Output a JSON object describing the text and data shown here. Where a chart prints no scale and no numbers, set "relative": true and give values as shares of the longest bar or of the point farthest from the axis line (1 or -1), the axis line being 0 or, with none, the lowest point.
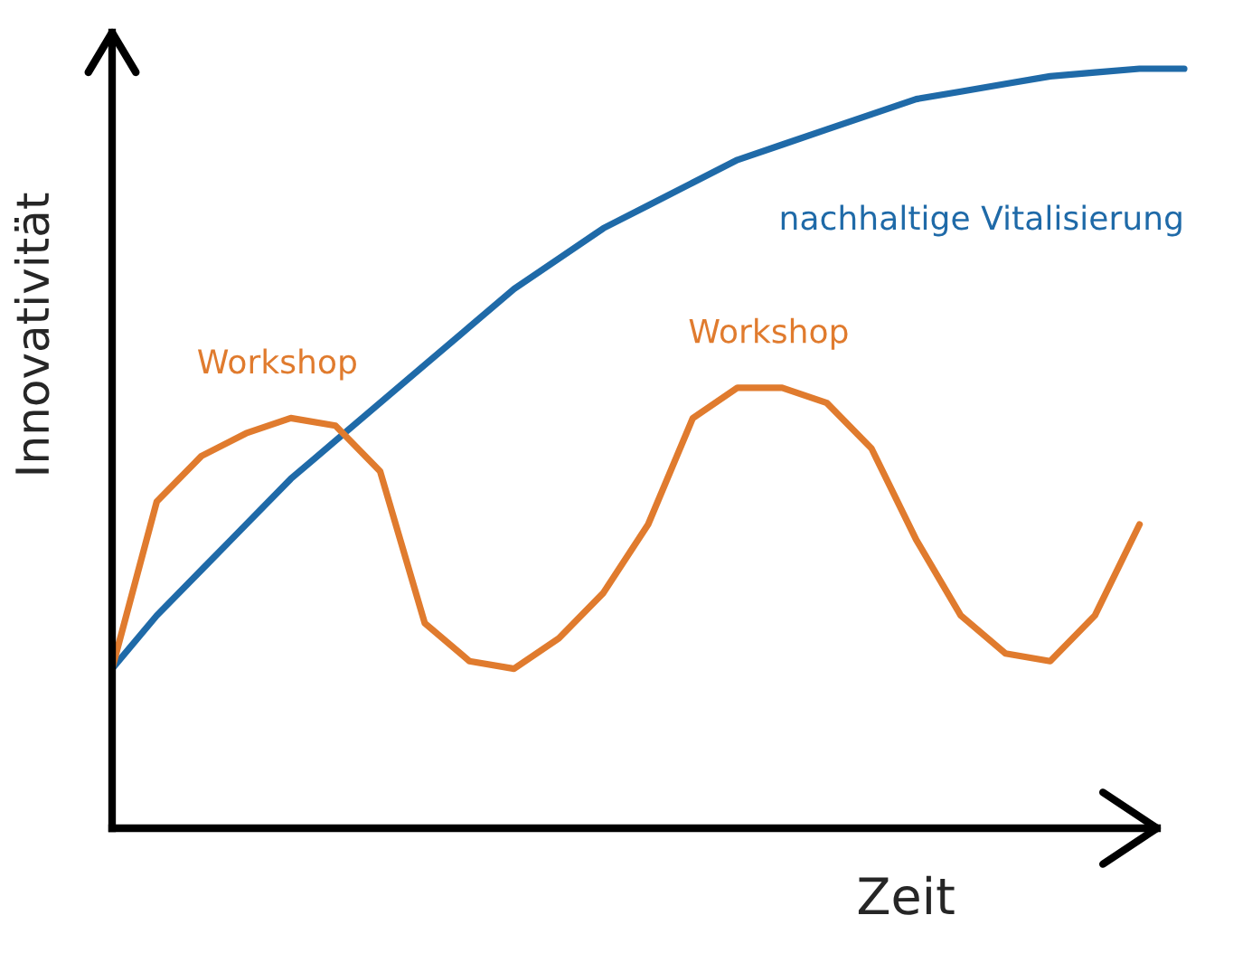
{
  "chart_data": {
    "type": "line",
    "relative": true,
    "xlabel": "Zeit",
    "ylabel": "Innovativität",
    "categories": [
      null,
      null,
      null,
      null,
      null,
      null,
      null,
      null,
      null,
      null,
      null,
      null,
      null,
      null,
      null,
      null,
      null,
      null,
      null,
      null,
      null,
      null,
      null,
      null,
      null
    ],
    "series": [
      {
        "name": "nachhaltige Vitalisierung",
        "color": "#1f6aa8",
        "values": [
          0.21,
          0.28,
          0.34,
          0.4,
          0.46,
          0.51,
          0.56,
          0.61,
          0.66,
          0.71,
          0.75,
          0.79,
          0.82,
          0.85,
          0.88,
          0.9,
          0.92,
          0.94,
          0.96,
          0.97,
          0.98,
          0.99,
          0.995,
          1.0,
          1.0
        ]
      },
      {
        "color": "#e07b2e",
        "values": [
          0.21,
          0.43,
          0.49,
          0.52,
          0.54,
          0.53,
          0.47,
          0.27,
          0.22,
          0.21,
          0.25,
          0.31,
          0.4,
          0.54,
          0.58,
          0.58,
          0.56,
          0.5,
          0.38,
          0.28,
          0.23,
          0.22,
          0.28,
          0.4,
          null
        ]
      }
    ],
    "annotations": [
      "Workshop",
      "Workshop"
    ]
  }
}
